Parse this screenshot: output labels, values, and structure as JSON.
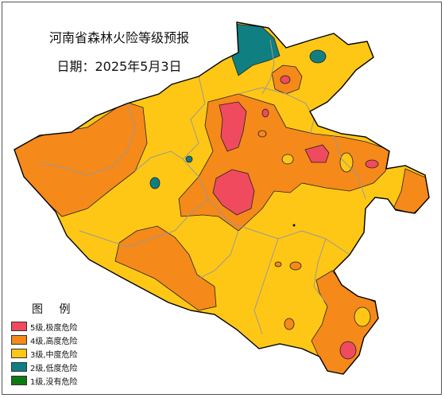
{
  "title": "河南省森林火险等级预报",
  "date_line": "日期：2025年5月3日",
  "legend": {
    "title": "图  例",
    "items": [
      {
        "label": "5级,极度危险",
        "color": "#f04a5e"
      },
      {
        "label": "4级,高度危险",
        "color": "#f5891a"
      },
      {
        "label": "3级,中度危险",
        "color": "#ffc715"
      },
      {
        "label": "2级,低度危险",
        "color": "#0f7f82"
      },
      {
        "label": "1级,没有危险",
        "color": "#0c7a10"
      }
    ]
  },
  "colors": {
    "level5": "#f04a5e",
    "level4": "#f5891a",
    "level3": "#ffc715",
    "level2": "#0f7f82",
    "boundary": "#999999",
    "outline": "#000000"
  }
}
